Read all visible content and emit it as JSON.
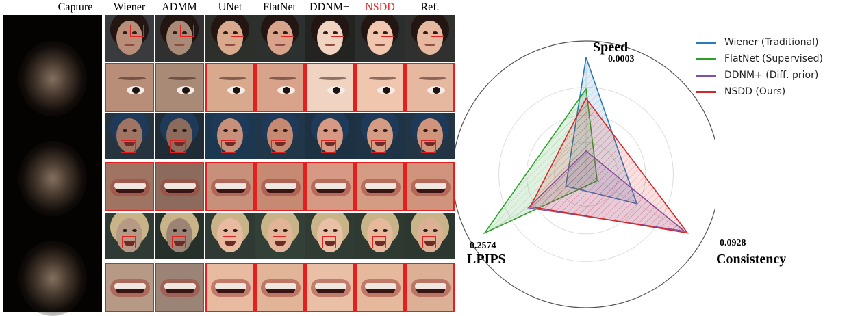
{
  "figure": {
    "columns": [
      {
        "key": "capture",
        "label": "Capture"
      },
      {
        "key": "wiener",
        "label": "Wiener"
      },
      {
        "key": "admm",
        "label": "ADMM"
      },
      {
        "key": "unet",
        "label": "UNet"
      },
      {
        "key": "flatnet",
        "label": "FlatNet"
      },
      {
        "key": "ddnm",
        "label": "DDNM+"
      },
      {
        "key": "nsdd",
        "label": "NSDD",
        "color": "#e52b2b"
      },
      {
        "key": "ref",
        "label": "Ref."
      }
    ],
    "crop_border_color": "#e31f1f"
  },
  "radar": {
    "axes": [
      {
        "name": "Speed",
        "value_label": "0.0003"
      },
      {
        "name": "Consistency",
        "value_label": "0.0928"
      },
      {
        "name": "LPIPS",
        "value_label": "0.2574"
      }
    ],
    "series": [
      {
        "name": "Wiener (Traditional)",
        "color": "#2a7ab8",
        "values": {
          "speed": 1.0,
          "consistency": 0.5,
          "lpips": 0.2
        }
      },
      {
        "name": "FlatNet (Supervised)",
        "color": "#2ca02c",
        "values": {
          "speed": 0.73,
          "consistency": 0.11,
          "lpips": 1.0
        }
      },
      {
        "name": "DDNM+ (Diff. prior)",
        "color": "#7b52ab",
        "values": {
          "speed": 0.2,
          "consistency": 0.97,
          "lpips": 0.57
        }
      },
      {
        "name": "NSDD (Ours)",
        "color": "#d62728",
        "values": {
          "speed": 0.65,
          "consistency": 1.0,
          "lpips": 0.55
        }
      }
    ]
  }
}
